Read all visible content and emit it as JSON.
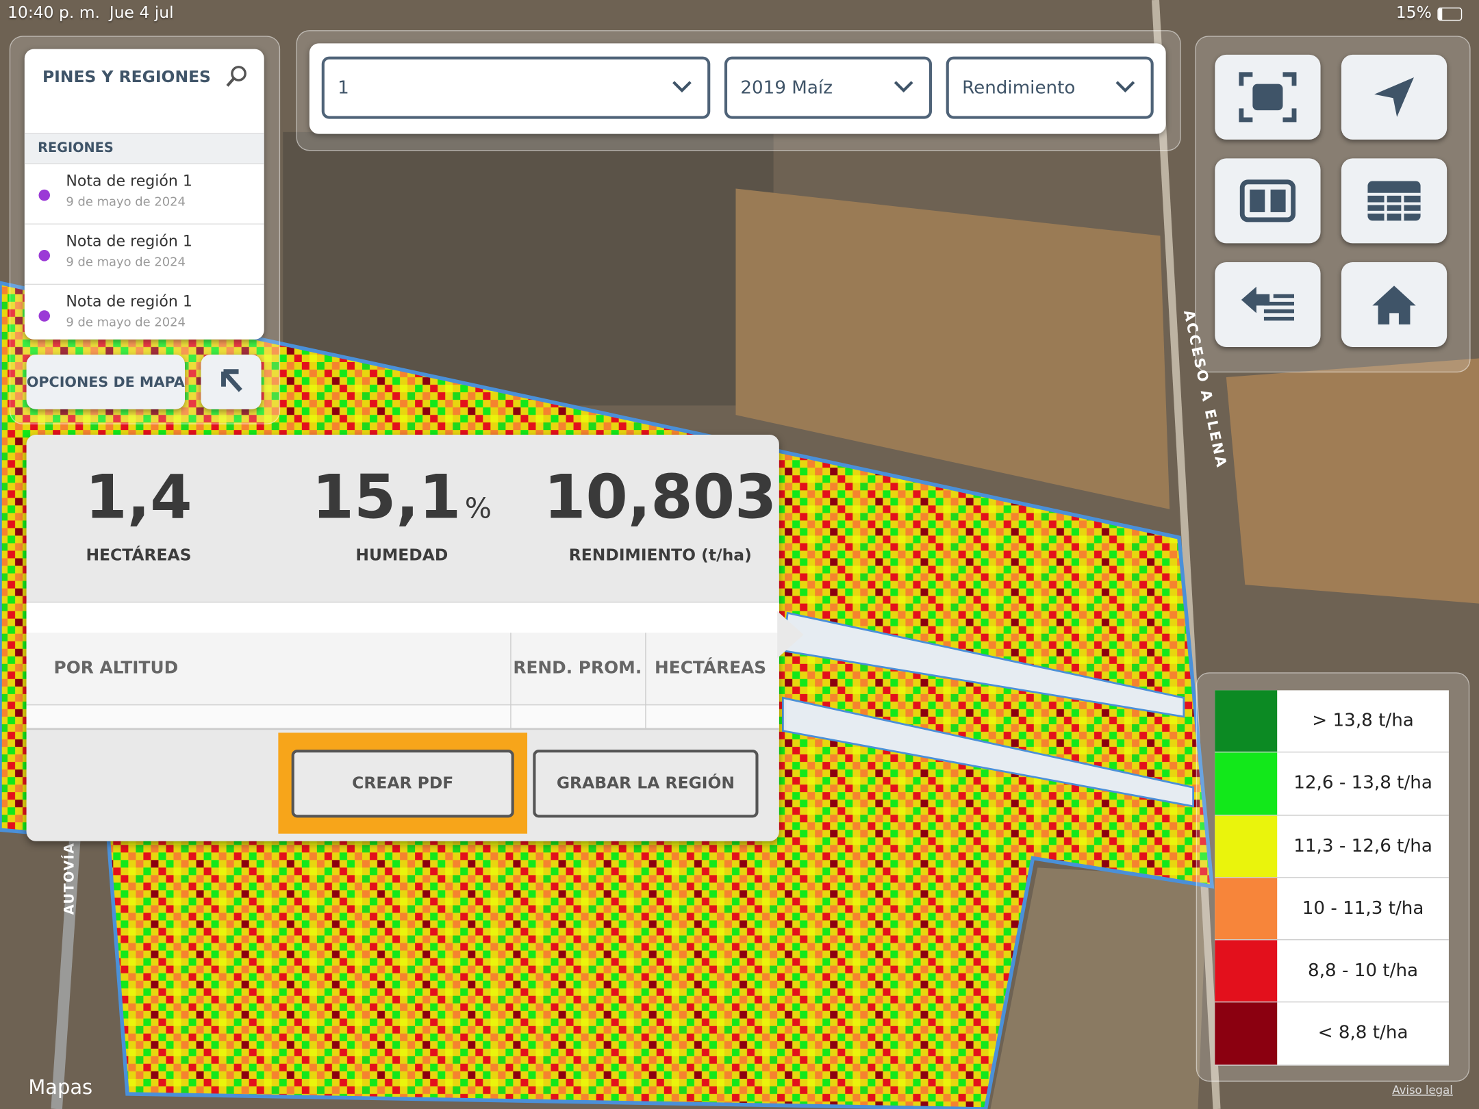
{
  "status_bar": {
    "time": "10:40 p. m.",
    "date": "Jue 4 jul",
    "battery": "15%"
  },
  "side_panel": {
    "title": "PINES Y REGIONES",
    "section": "REGIONES",
    "regions": [
      {
        "title": "Nota de región 1",
        "date": "9 de mayo de 2024"
      },
      {
        "title": "Nota de región 1",
        "date": "9 de mayo de 2024"
      },
      {
        "title": "Nota de región 1",
        "date": "9 de mayo de 2024"
      }
    ]
  },
  "map_options_button": "OPCIONES DE MAPA",
  "dropdowns": [
    "1",
    "2019 Maíz",
    "Rendimiento"
  ],
  "summary": {
    "stats": [
      {
        "value": "1,4",
        "label": "HECTÁREAS"
      },
      {
        "value": "15,1",
        "unit": "%",
        "label": "HUMEDAD"
      },
      {
        "value": "10,803",
        "label": "RENDIMIENTO (t/ha)"
      }
    ],
    "table_headers": [
      "POR ALTITUD",
      "REND. PROM.",
      "HECTÁREAS"
    ],
    "buttons": [
      "CREAR PDF",
      "GRABAR LA REGIÓN"
    ]
  },
  "legend": [
    {
      "label": "> 13,8 t/ha",
      "color": "#0c8a23"
    },
    {
      "label": "12,6 - 13,8 t/ha",
      "color": "#12e81a"
    },
    {
      "label": "11,3 - 12,6 t/ha",
      "color": "#eaf40c"
    },
    {
      "label": "10 - 11,3 t/ha",
      "color": "#f7853a"
    },
    {
      "label": "8,8 - 10 t/ha",
      "color": "#e3101c"
    },
    {
      "label": "< 8,8 t/ha",
      "color": "#8b0010"
    }
  ],
  "map_labels": {
    "road_east": "ACCESO A ELENA",
    "road_west": "AUTOVÍA",
    "attribution": "Mapas",
    "legal": "Aviso legal"
  }
}
